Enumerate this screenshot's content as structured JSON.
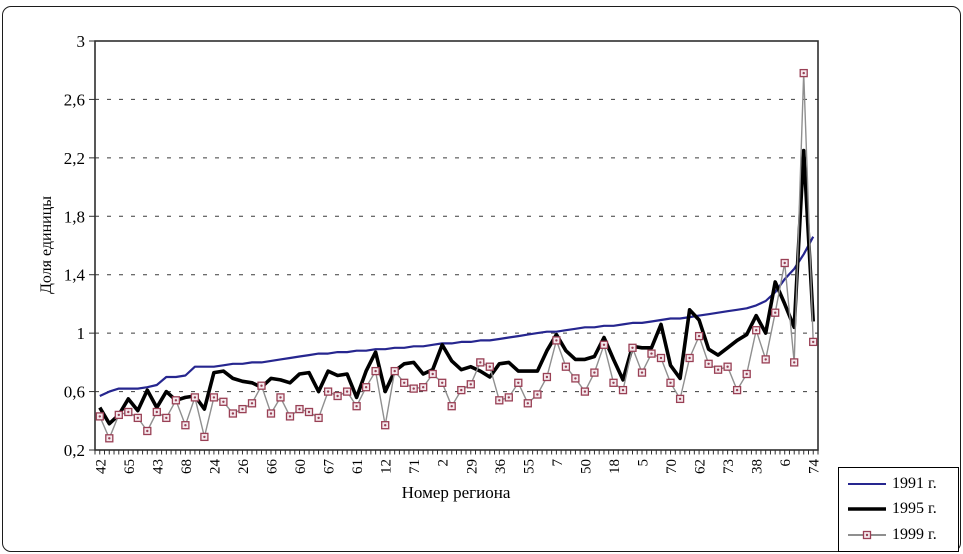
{
  "chart_data": {
    "type": "line",
    "title": "",
    "xlabel": "Номер региона",
    "ylabel": "Доля единицы",
    "ylim": [
      0.2,
      3.0
    ],
    "yticks": [
      0.2,
      0.6,
      1.0,
      1.4,
      1.8,
      2.2,
      2.6,
      3.0
    ],
    "ytick_labels": [
      "0,2",
      "0,6",
      "1",
      "1,4",
      "1,8",
      "2,2",
      "2,6",
      "3"
    ],
    "n_points": 76,
    "x_tick_labels": [
      "42",
      "65",
      "43",
      "68",
      "24",
      "26",
      "66",
      "60",
      "67",
      "61",
      "12",
      "71",
      "2",
      "29",
      "36",
      "55",
      "7",
      "50",
      "18",
      "5",
      "70",
      "62",
      "73",
      "38",
      "6",
      "74"
    ],
    "label_every": 3,
    "grid": "dashed-horizontal",
    "legend_position": "bottom-right",
    "series": [
      {
        "name": "1991 г.",
        "color": "#26268f",
        "line_width": 2.2,
        "marker": false,
        "values": [
          0.57,
          0.6,
          0.62,
          0.62,
          0.62,
          0.63,
          0.645,
          0.7,
          0.7,
          0.71,
          0.77,
          0.77,
          0.77,
          0.78,
          0.79,
          0.79,
          0.8,
          0.8,
          0.81,
          0.82,
          0.83,
          0.84,
          0.85,
          0.86,
          0.86,
          0.87,
          0.87,
          0.88,
          0.88,
          0.89,
          0.89,
          0.9,
          0.9,
          0.91,
          0.91,
          0.92,
          0.93,
          0.93,
          0.94,
          0.94,
          0.95,
          0.95,
          0.96,
          0.97,
          0.98,
          0.99,
          1.0,
          1.01,
          1.01,
          1.02,
          1.03,
          1.04,
          1.04,
          1.05,
          1.05,
          1.06,
          1.07,
          1.07,
          1.08,
          1.09,
          1.1,
          1.1,
          1.11,
          1.12,
          1.13,
          1.14,
          1.15,
          1.16,
          1.17,
          1.19,
          1.22,
          1.28,
          1.37,
          1.44,
          1.54,
          1.66
        ]
      },
      {
        "name": "1995 г.",
        "color": "#000000",
        "line_width": 3.6,
        "marker": false,
        "values": [
          0.49,
          0.38,
          0.44,
          0.55,
          0.47,
          0.61,
          0.49,
          0.6,
          0.54,
          0.56,
          0.57,
          0.48,
          0.73,
          0.74,
          0.69,
          0.67,
          0.66,
          0.63,
          0.69,
          0.68,
          0.66,
          0.72,
          0.73,
          0.6,
          0.74,
          0.71,
          0.72,
          0.56,
          0.74,
          0.87,
          0.6,
          0.74,
          0.79,
          0.8,
          0.72,
          0.75,
          0.92,
          0.81,
          0.75,
          0.77,
          0.74,
          0.7,
          0.79,
          0.8,
          0.74,
          0.74,
          0.74,
          0.88,
          0.99,
          0.88,
          0.82,
          0.82,
          0.84,
          0.97,
          0.82,
          0.68,
          0.91,
          0.9,
          0.9,
          1.06,
          0.78,
          0.69,
          1.16,
          1.09,
          0.89,
          0.85,
          0.9,
          0.95,
          0.99,
          1.12,
          1.0,
          1.35,
          1.2,
          1.04,
          2.25,
          1.08
        ]
      },
      {
        "name": "1999 г.",
        "color": "#8f8f8f",
        "line_width": 1.4,
        "marker": true,
        "marker_color": "#994055",
        "marker_fill": "#f4e9ed",
        "values": [
          0.43,
          0.28,
          0.44,
          0.46,
          0.42,
          0.33,
          0.46,
          0.42,
          0.54,
          0.37,
          0.56,
          0.29,
          0.56,
          0.53,
          0.45,
          0.48,
          0.52,
          0.64,
          0.45,
          0.56,
          0.43,
          0.48,
          0.46,
          0.42,
          0.6,
          0.57,
          0.6,
          0.5,
          0.63,
          0.74,
          0.37,
          0.74,
          0.66,
          0.62,
          0.63,
          0.72,
          0.66,
          0.5,
          0.61,
          0.65,
          0.8,
          0.77,
          0.54,
          0.56,
          0.66,
          0.52,
          0.58,
          0.7,
          0.95,
          0.77,
          0.69,
          0.6,
          0.73,
          0.92,
          0.66,
          0.61,
          0.9,
          0.73,
          0.86,
          0.83,
          0.66,
          0.55,
          0.83,
          0.98,
          0.79,
          0.75,
          0.77,
          0.61,
          0.72,
          1.02,
          0.82,
          1.14,
          1.48,
          0.8,
          2.78,
          0.94
        ]
      }
    ]
  }
}
